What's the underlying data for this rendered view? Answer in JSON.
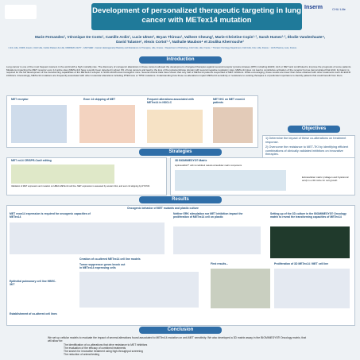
{
  "header": {
    "logos": [
      "Inserm",
      "CHU Lille"
    ],
    "title": "Development of personalized therapeutic targeting in lung cancer with METex14 mutation",
    "authors": "Marie Fernandes¹, Véronique De Conto¹, Camille Ardin¹, Lucie Ulmer¹, Bryan Thiroux¹, Valhere Cheung¹, Marie-Christine Copin¹·², Sarah Humez¹·², Élodie Vandenhaute⁴, David Tulasne¹, Alexis Cortot¹·³, Nathalie Maubon⁴ et Zoulika Kherrouche¹",
    "affiliations": "¹ Univ. Lille, CNRS, Inserm, CHU Lille, Institut Pasteur de Lille, UMR9020-U1277 - CANTHER - Cancer Heterogeneity Plasticity and Resistance to Therapies, Lille, France. ² Department of Pathology, CHU Lille, Lille, France. ³ Thoracic Oncology Department, CHU Lille, Univ. Lille, France. ⁴ HCS Pharma, Loos, France."
  },
  "introduction": {
    "heading": "Introduction",
    "text": "Lung cancer is one of the most frequent cancers in the world with a high mortality rate. The discovery of oncogenic alterations in these cancers allowed the development of targeted therapies against several receptor tyrosine kinases (RTK) including EGFR, ALK or MET and contributed to improve the prognosis of some patients. Mutations impacting the MET receptor exon 14 splice sites (METex14) have recently been detected in about 3% of lung cancers and lead to the loss of the juxtamembrane domain with several negative regulatory sites. METex14 does not lead to constitutive activation of the receptor but we demonstrated that HGF, its ligand, is required for the full development of the transforming capabilities of the METex14 receptor in SCID-HGF/human transgenic mice. Several clinical trials have shown that only half of METex14 patients responded to MET inhibitors. While encouraging, these results are lower than those obtained with other treatments such as EGFR inhibitors. Interestingly, METex14 mutations are frequently associated with other molecular alterations including PTEN loss or TP53 mutations. Understanding how these co-alterations impact METex14 sensitivity or resistance to existing therapies is of particular importance to identify patients that could benefit from them.",
    "figures": [
      "MET receptor",
      "Exon 14 skipping of MET",
      "Frequent alterations associated with METex14 in NSCLC",
      "MET IHC on MET exon14 patients"
    ]
  },
  "objectives": {
    "heading": "Objectives",
    "items": [
      "1) Determine the impact of these co-alterations on treatment response.",
      "2) Overcome the resistance to MET-TKI by identifying efficient combinations of clinically validated inhibitors on innovative therapies."
    ]
  },
  "strategies": {
    "heading": "Strategies",
    "panels": [
      "MET ex14 CRISPR-Cas9 editing",
      "3D BIOMIMESYS® Matrix"
    ],
    "notes": [
      "Validation of MET expression and mutation on HBEC-METex14 cell line. MET expression is assessed by western blot, and exon 14 skipping by RT-PCR.",
      "Hydroscaffold™ with immobilized natural extracellular matrix components",
      "Extracellular matrix (collagen and hyaluronic acid) in a 3D niche for cell growth"
    ]
  },
  "results": {
    "heading": "Results",
    "subtitle": "Oncogenic behavior of MET mutants and plastic culture",
    "panels": [
      "MET exon14 expression is required for oncogenic capacities of METex14",
      "Neither ERK stimulation nor MET inhibition impact the proliferation of METex14 cell on plastic",
      "Setting up of the 3D culture in the BIOMIMESYS® Oncology matrix to reveal the transforming capacities of METex14",
      "Creation of co-altered METex14 cell line models",
      "Tumor suppressor genes knock out in METex14 expressing cells",
      "First results...",
      "Proliferation of 3D METex14 / MET cell line",
      "Epithelial pulmonary cell line HBEC-3KT",
      "Establishment of co-altered cell lines"
    ]
  },
  "conclusion": {
    "heading": "Conclusion",
    "text": "We set up cellular models to evaluate the impact of several alterations found associated to METex14 mutation on anti-MET sensitivity. We also developed a 3D matrix assay in the BIOMIMESYS® Oncology matrix, that will allow for:",
    "items": [
      "The identification of co-alterations that drive resistance to MET inhibitors",
      "The evaluation of the efficacy of combined treatments",
      "The search for innovative treatment using high-throughput screening",
      "The reduction of animal testing"
    ]
  }
}
